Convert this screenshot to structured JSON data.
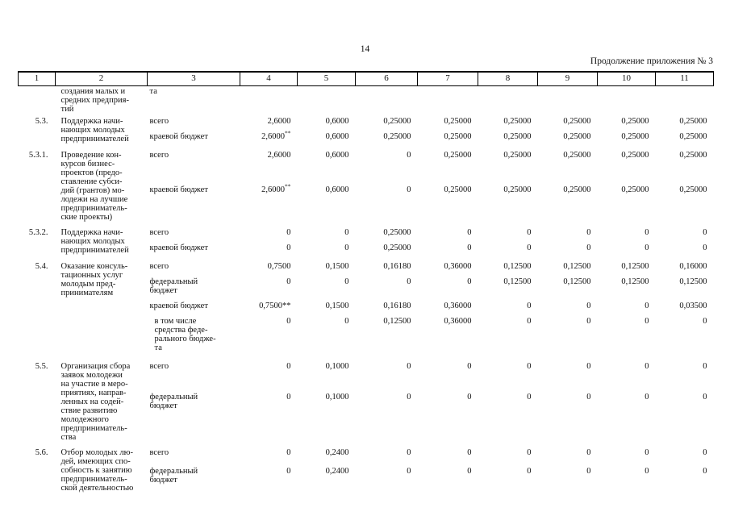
{
  "page": {
    "page_number": "14",
    "continuation_label": "Продолжение приложения № 3"
  },
  "table": {
    "header_cols": [
      "1",
      "2",
      "3",
      "4",
      "5",
      "6",
      "7",
      "8",
      "9",
      "10",
      "11"
    ],
    "groups": [
      {
        "num": "",
        "desc": "создания малых и\nсредних предприя-\nтий",
        "sub": [
          {
            "label": "та",
            "values": [
              "",
              "",
              "",
              "",
              "",
              "",
              "",
              ""
            ]
          }
        ]
      },
      {
        "num": "5.3.",
        "desc": "Поддержка начи-\nнающих молодых\nпредпринимателей",
        "sub": [
          {
            "label": "всего",
            "values": [
              "2,6000",
              "0,6000",
              "0,25000",
              "0,25000",
              "0,25000",
              "0,25000",
              "0,25000",
              "0,25000"
            ]
          },
          {
            "label": "краевой бюджет",
            "values": [
              {
                "v": "2,6000",
                "sup": "**"
              },
              "0,6000",
              "0,25000",
              "0,25000",
              "0,25000",
              "0,25000",
              "0,25000",
              "0,25000"
            ]
          }
        ]
      },
      {
        "num": "5.3.1.",
        "desc": "Проведение кон-\nкурсов бизнес-\nпроектов (предо-\nставление субси-\nдий (грантов) мо-\nлодежи на лучшие\nпредприниматель-\nские проекты)",
        "sub": [
          {
            "label": "всего",
            "values": [
              "2,6000",
              "0,6000",
              "0",
              "0,25000",
              "0,25000",
              "0,25000",
              "0,25000",
              "0,25000"
            ]
          },
          {
            "label": "краевой бюджет",
            "values": [
              {
                "v": "2,6000",
                "sup": "**"
              },
              "0,6000",
              "0",
              "0,25000",
              "0,25000",
              "0,25000",
              "0,25000",
              "0,25000"
            ]
          }
        ]
      },
      {
        "num": "5.3.2.",
        "desc": "Поддержка начи-\nнающих молодых\nпредпринимателей",
        "sub": [
          {
            "label": "всего",
            "values": [
              "0",
              "0",
              "0,25000",
              "0",
              "0",
              "0",
              "0",
              "0"
            ]
          },
          {
            "label": "краевой бюджет",
            "values": [
              "0",
              "0",
              "0,25000",
              "0",
              "0",
              "0",
              "0",
              "0"
            ]
          }
        ]
      },
      {
        "num": "5.4.",
        "desc": "Оказание консуль-\nтационных услуг\nмолодым пред-\nпринимателям",
        "sub": [
          {
            "label": "всего",
            "values": [
              "0,7500",
              "0,1500",
              "0,16180",
              "0,36000",
              "0,12500",
              "0,12500",
              "0,12500",
              "0,16000"
            ]
          },
          {
            "label": "федеральный\nбюджет",
            "values": [
              "0",
              "0",
              "0",
              "0",
              "0,12500",
              "0,12500",
              "0,12500",
              "0,12500"
            ]
          },
          {
            "label": "краевой бюджет",
            "values": [
              "0,7500**",
              "0,1500",
              "0,16180",
              "0,36000",
              "0",
              "0",
              "0",
              "0,03500"
            ]
          },
          {
            "label": "в том числе\nсредства феде-\nрального бюдже-\nта",
            "indent": true,
            "values": [
              "0",
              "0",
              "0,12500",
              "0,36000",
              "0",
              "0",
              "0",
              "0"
            ]
          }
        ]
      },
      {
        "num": "5.5.",
        "desc": "Организация сбора\nзаявок молодежи\nна участие в меро-\nприятиях, направ-\nленных на содей-\nствие развитию\nмолодежного\nпредприниматель-\nства",
        "sub": [
          {
            "label": "всего",
            "values": [
              "0",
              "0,1000",
              "0",
              "0",
              "0",
              "0",
              "0",
              "0"
            ]
          },
          {
            "label": "федеральный\nбюджет",
            "values": [
              "0",
              "0,1000",
              "0",
              "0",
              "0",
              "0",
              "0",
              "0"
            ]
          }
        ]
      },
      {
        "num": "5.6.",
        "desc": "Отбор молодых лю-\nдей, имеющих спо-\nсобность к занятию\nпредприниматель-\nской деятельностью",
        "sub": [
          {
            "label": "всего",
            "values": [
              "0",
              "0,2400",
              "0",
              "0",
              "0",
              "0",
              "0",
              "0"
            ]
          },
          {
            "label": "федеральный\nбюджет",
            "values": [
              "0",
              "0,2400",
              "0",
              "0",
              "0",
              "0",
              "0",
              "0"
            ]
          }
        ]
      }
    ]
  }
}
